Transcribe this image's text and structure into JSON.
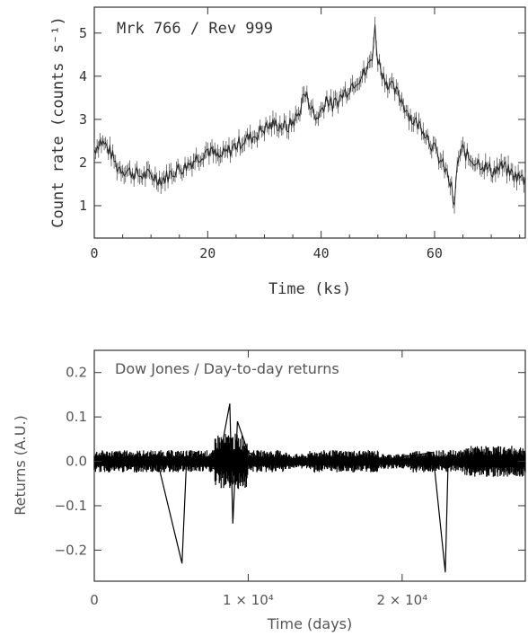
{
  "chart_data": [
    {
      "type": "line",
      "title": "Mrk 766 / Rev 999",
      "xlabel": "Time (ks)",
      "ylabel": "Count rate (counts s⁻¹)",
      "xlim": [
        0,
        76
      ],
      "ylim": [
        0.25,
        5.6
      ],
      "x_ticks": [
        0,
        20,
        40,
        60
      ],
      "y_ticks": [
        1,
        2,
        3,
        4,
        5
      ],
      "grid": false,
      "error_bars": true,
      "series": [
        {
          "x": [
            0,
            1,
            2,
            3,
            4,
            6,
            8,
            10,
            12,
            14,
            16,
            18,
            20,
            22,
            24,
            26,
            28,
            30,
            32,
            34,
            36,
            37,
            38,
            39,
            40,
            41,
            42,
            44,
            46,
            48,
            49,
            49.5,
            50,
            51,
            52,
            54,
            56,
            58,
            60,
            62,
            63,
            63.5,
            64,
            65,
            66,
            68,
            70,
            72,
            74,
            76
          ],
          "y": [
            2.3,
            2.5,
            2.4,
            2.2,
            1.9,
            1.8,
            1.7,
            1.7,
            1.6,
            1.8,
            1.9,
            2.1,
            2.3,
            2.1,
            2.3,
            2.5,
            2.6,
            2.8,
            2.9,
            2.8,
            3.1,
            3.6,
            3.4,
            3.0,
            3.2,
            3.5,
            3.3,
            3.6,
            3.9,
            4.1,
            4.5,
            5.1,
            4.4,
            4.0,
            3.8,
            3.5,
            3.0,
            2.8,
            2.3,
            1.8,
            1.4,
            0.9,
            2.0,
            2.3,
            2.1,
            2.0,
            1.8,
            1.9,
            1.7,
            1.6
          ]
        }
      ]
    },
    {
      "type": "line",
      "title": "Dow Jones / Day-to-day returns",
      "xlabel": "Time (days)",
      "ylabel": "Returns (A.U.)",
      "xlim": [
        0,
        28000
      ],
      "ylim": [
        -0.27,
        0.25
      ],
      "x_ticks": [
        0,
        10000,
        20000
      ],
      "x_tick_labels": [
        "0",
        "1 × 10⁴",
        "2 × 10⁴"
      ],
      "y_ticks": [
        -0.2,
        -0.1,
        0.0,
        0.1,
        0.2
      ],
      "grid": false,
      "series": [
        {
          "x": [
            0,
            2000,
            4000,
            5700,
            6000,
            8000,
            8800,
            9000,
            9300,
            10000,
            12000,
            14000,
            16000,
            18000,
            20000,
            22000,
            22800,
            23000,
            24000,
            26000,
            28000
          ],
          "y": [
            0.005,
            -0.01,
            0.015,
            -0.23,
            0.01,
            -0.02,
            0.13,
            -0.14,
            0.09,
            0.02,
            -0.01,
            0.005,
            0.01,
            -0.005,
            0.01,
            0.02,
            -0.25,
            0.02,
            -0.01,
            0.015,
            0.0
          ]
        }
      ]
    }
  ]
}
